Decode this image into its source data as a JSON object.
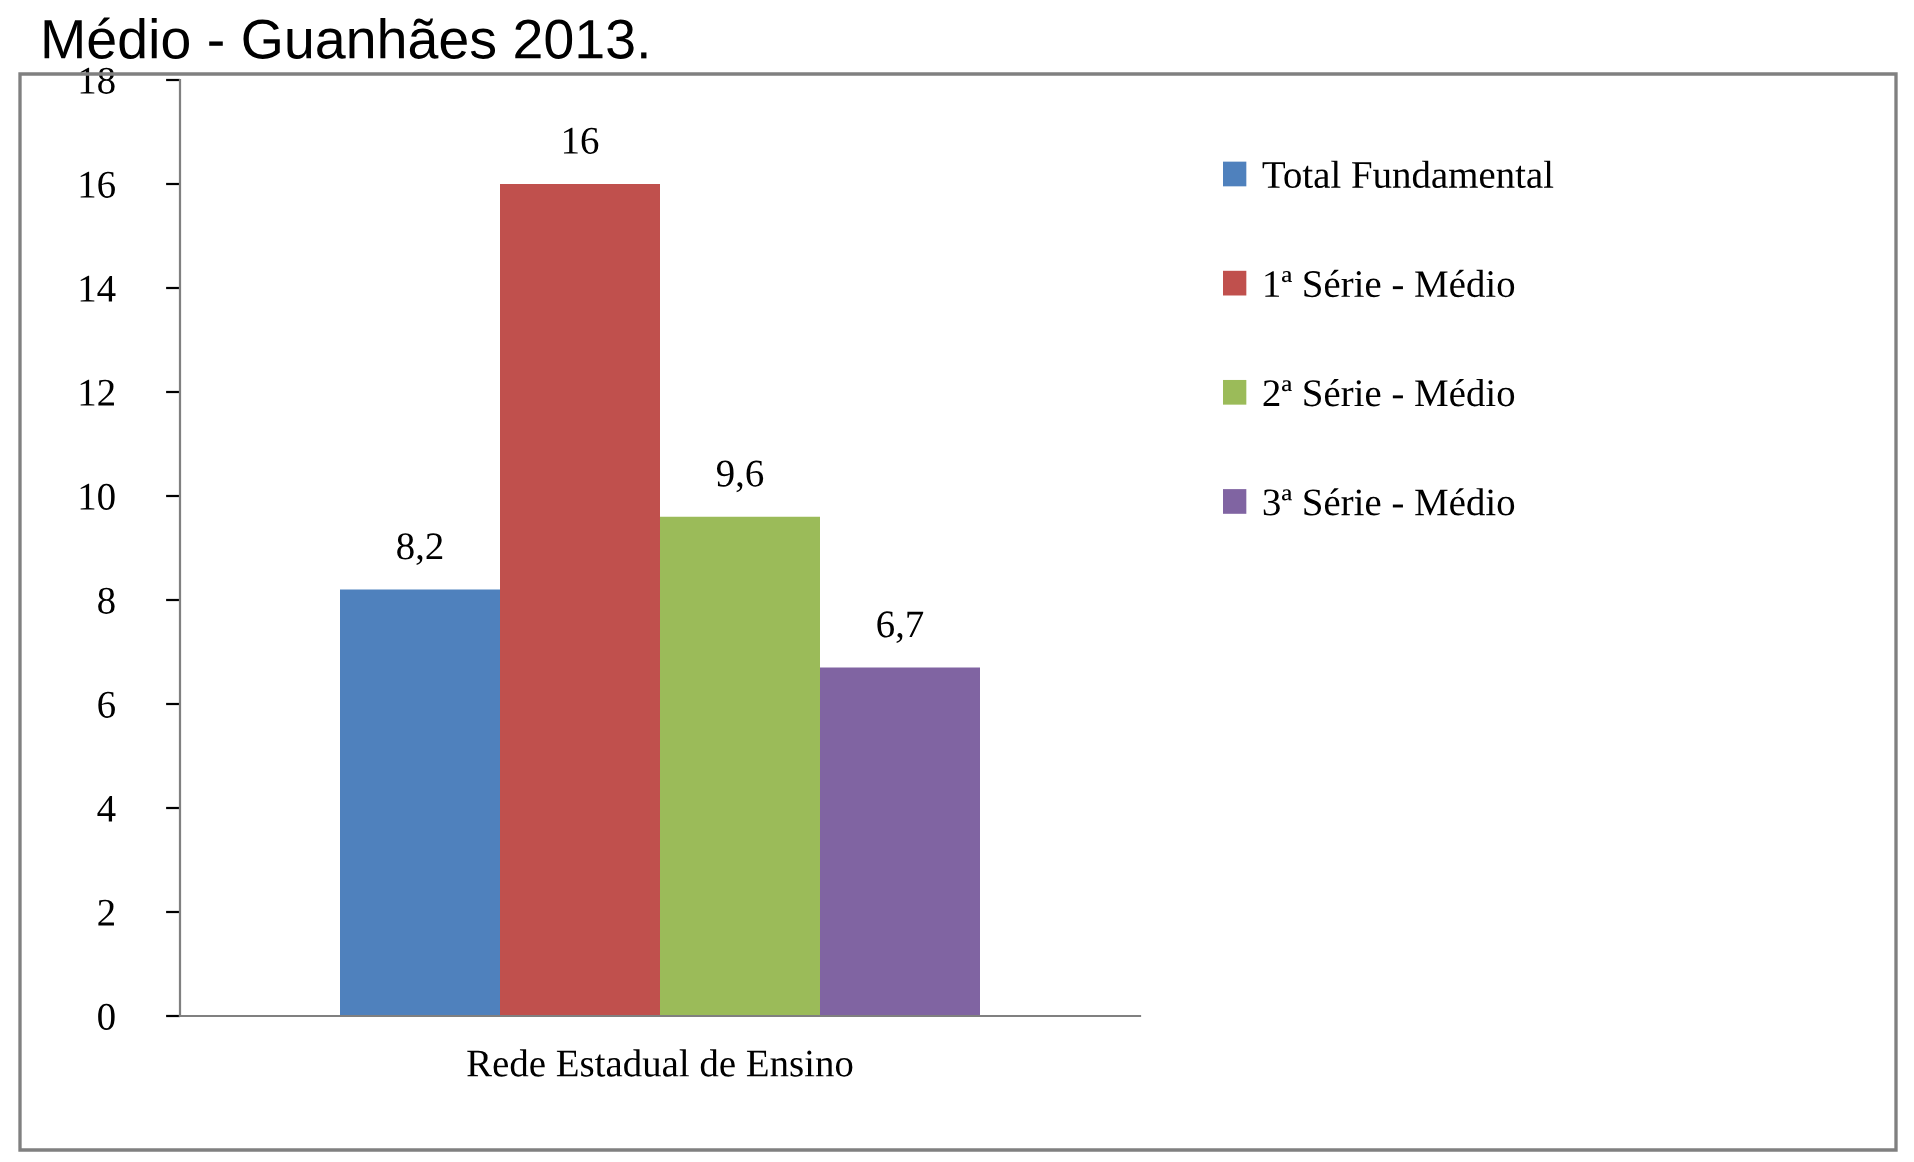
{
  "chart_data": {
    "type": "bar",
    "title": "Médio - Guanhães 2013.",
    "categories": [
      "Rede Estadual de Ensino"
    ],
    "series": [
      {
        "name": "Total Fundamental",
        "color": "#4f81bd",
        "values": [
          8.2
        ],
        "value_labels": [
          "8,2"
        ]
      },
      {
        "name": "1ª Série - Médio",
        "color": "#c0504d",
        "values": [
          16
        ],
        "value_labels": [
          "16"
        ]
      },
      {
        "name": "2ª Série - Médio",
        "color": "#9bbb59",
        "values": [
          9.6
        ],
        "value_labels": [
          "9,6"
        ]
      },
      {
        "name": "3ª Série - Médio",
        "color": "#8064a2",
        "values": [
          6.7
        ],
        "value_labels": [
          "6,7"
        ]
      }
    ],
    "ylim": [
      0,
      18
    ],
    "yticks": [
      0,
      2,
      4,
      6,
      8,
      10,
      12,
      14,
      16,
      18
    ],
    "grid": false,
    "legend": "right"
  }
}
